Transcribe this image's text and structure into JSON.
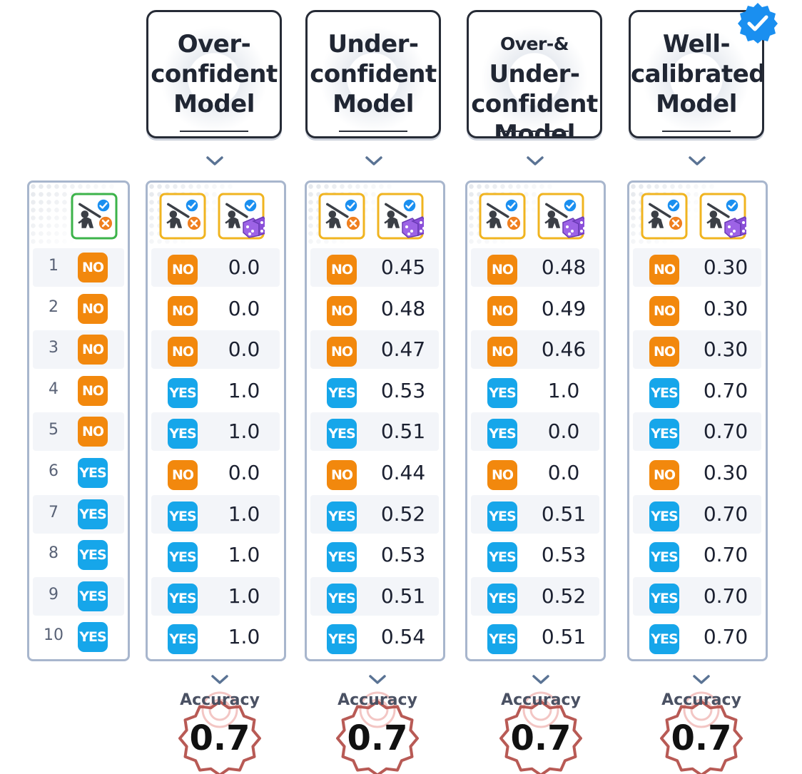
{
  "models": [
    {
      "title": "Over-\nconfident\nModel",
      "accuracy": "0.7",
      "predictions": [
        "NO",
        "NO",
        "NO",
        "YES",
        "YES",
        "NO",
        "YES",
        "YES",
        "YES",
        "YES"
      ],
      "confidences": [
        "0.0",
        "0.0",
        "0.0",
        "1.0",
        "1.0",
        "0.0",
        "1.0",
        "1.0",
        "1.0",
        "1.0"
      ]
    },
    {
      "title": "Under-\nconfident\nModel",
      "accuracy": "0.7",
      "predictions": [
        "NO",
        "NO",
        "NO",
        "YES",
        "YES",
        "NO",
        "YES",
        "YES",
        "YES",
        "YES"
      ],
      "confidences": [
        "0.45",
        "0.48",
        "0.47",
        "0.53",
        "0.51",
        "0.44",
        "0.52",
        "0.53",
        "0.51",
        "0.54"
      ]
    },
    {
      "title": "Over-& Under-\nconfident\nModel",
      "accuracy": "0.7",
      "predictions": [
        "NO",
        "NO",
        "NO",
        "YES",
        "YES",
        "NO",
        "YES",
        "YES",
        "YES",
        "YES"
      ],
      "confidences": [
        "0.48",
        "0.49",
        "0.46",
        "1.0",
        "0.0",
        "0.0",
        "0.51",
        "0.53",
        "0.52",
        "0.51"
      ]
    },
    {
      "title": "Well-\ncalibrated\nModel",
      "accuracy": "0.7",
      "predictions": [
        "NO",
        "NO",
        "NO",
        "YES",
        "YES",
        "NO",
        "YES",
        "YES",
        "YES",
        "YES"
      ],
      "confidences": [
        "0.30",
        "0.30",
        "0.30",
        "0.70",
        "0.70",
        "0.30",
        "0.70",
        "0.70",
        "0.70",
        "0.70"
      ]
    }
  ],
  "ground_truth": {
    "indices": [
      "1",
      "2",
      "3",
      "4",
      "5",
      "6",
      "7",
      "8",
      "9",
      "10"
    ],
    "labels": [
      "NO",
      "NO",
      "NO",
      "NO",
      "NO",
      "YES",
      "YES",
      "YES",
      "YES",
      "YES"
    ]
  },
  "accuracy_label": "Accuracy",
  "icons": {
    "prediction": "golfer-check-cross-icon",
    "confidence": "golfer-dice-icon",
    "ground_truth": "golfer-check-cross-icon-green",
    "verified": "verified-check-badge-icon",
    "chevron": "chevron-down-icon"
  },
  "colors": {
    "no": "#f2880d",
    "yes": "#16a6ea",
    "panel_border": "#a8b6cd",
    "ground_truth_frame": "#3cb34a",
    "prediction_frame": "#f0b420",
    "seal": "#b85a55",
    "dice": "#8a4fd8",
    "verified": "#1a8ff0"
  }
}
